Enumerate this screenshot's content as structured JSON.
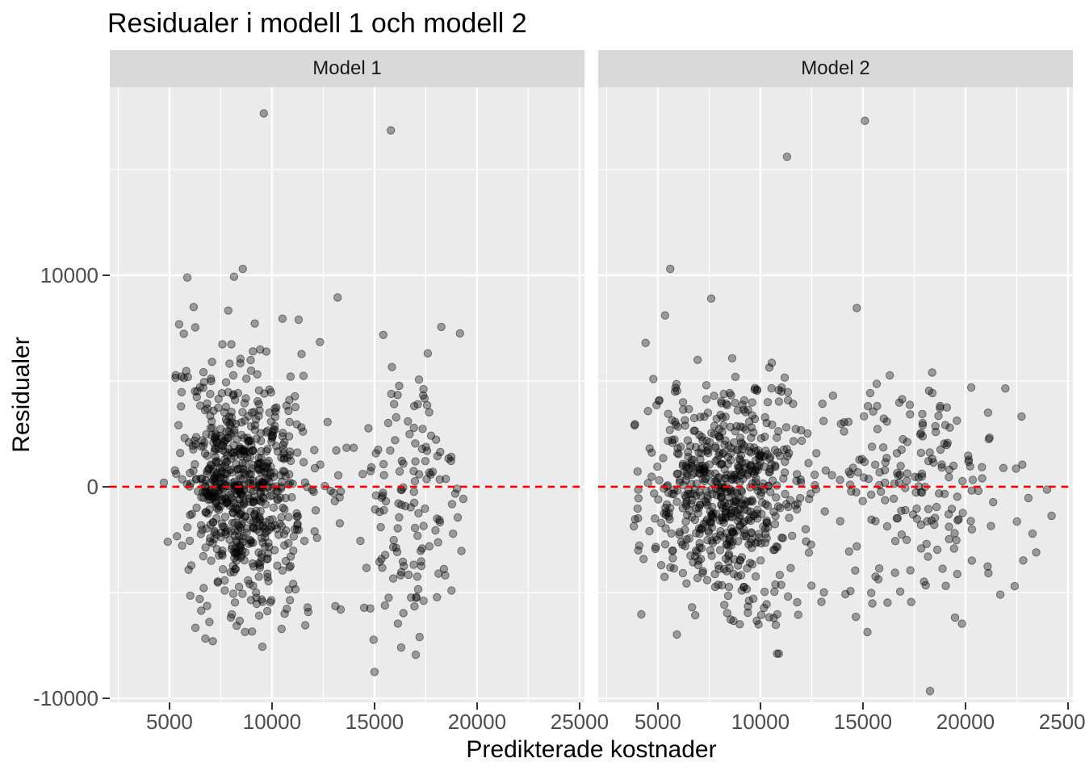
{
  "chart_data": {
    "type": "scatter",
    "title": "Residualer i modell 1 och modell 2",
    "xlabel": "Predikterade kostnader",
    "ylabel": "Residualer",
    "xlim": [
      2090,
      25240
    ],
    "ylim": [
      -10190,
      18890
    ],
    "x_major_ticks": [
      5000,
      10000,
      15000,
      20000,
      25000
    ],
    "x_minor_ticks": [
      2500,
      7500,
      12500,
      17500,
      22500
    ],
    "y_major_ticks": [
      -10000,
      0,
      10000
    ],
    "y_minor_ticks": [
      -5000,
      5000,
      15000
    ],
    "grid": true,
    "legend": "none",
    "reference_line": {
      "y": 0,
      "color": "#FF0000",
      "style": "dashed"
    },
    "point_style": {
      "color": "#000000",
      "fill_opacity": 0.35,
      "edge_opacity": 0.45,
      "radius": 4.7
    },
    "seed": 1337,
    "facets": [
      {
        "label": "Model 1",
        "clusters": [
          {
            "n": 480,
            "cx": 8700,
            "cy": -900,
            "sx": 1450,
            "sy": 1900,
            "xmin": 4600,
            "xmax": 12400,
            "ymin": -6700,
            "ymax": 4600
          },
          {
            "n": 200,
            "cx": 8300,
            "cy": 2100,
            "sx": 1700,
            "sy": 2300,
            "xmin": 4600,
            "xmax": 12400,
            "ymin": -800,
            "ymax": 8600
          },
          {
            "n": 28,
            "cx": 8800,
            "cy": -5700,
            "sx": 1500,
            "sy": 850,
            "xmin": 5200,
            "xmax": 12000,
            "ymin": -7700,
            "ymax": -4300
          },
          {
            "n": 135,
            "cx": 16600,
            "cy": -800,
            "sx": 1500,
            "sy": 3100,
            "xmin": 13700,
            "xmax": 19700,
            "ymin": -8500,
            "ymax": 7400
          },
          {
            "n": 12,
            "cx": 13000,
            "cy": -1200,
            "sx": 420,
            "sy": 2600,
            "xmin": 12400,
            "xmax": 13700,
            "ymin": -6200,
            "ymax": 3500
          }
        ],
        "outliers": [
          [
            9600,
            17650
          ],
          [
            15800,
            16850
          ],
          [
            13200,
            8950
          ],
          [
            5870,
            9890
          ],
          [
            8150,
            9930
          ],
          [
            8580,
            10300
          ],
          [
            7870,
            8330
          ],
          [
            10510,
            7950
          ],
          [
            6180,
            8500
          ],
          [
            5470,
            7680
          ],
          [
            15430,
            7180
          ],
          [
            18260,
            7560
          ],
          [
            19170,
            7250
          ],
          [
            15000,
            -8750
          ],
          [
            16300,
            -7600
          ],
          [
            17010,
            -7940
          ],
          [
            9530,
            -7560
          ],
          [
            11770,
            -5920
          ],
          [
            13350,
            -5800
          ],
          [
            11300,
            7900
          ]
        ]
      },
      {
        "label": "Model 2",
        "clusters": [
          {
            "n": 520,
            "cx": 8300,
            "cy": -800,
            "sx": 2000,
            "sy": 2000,
            "xmin": 3400,
            "xmax": 13800,
            "ymin": -7300,
            "ymax": 5600
          },
          {
            "n": 130,
            "cx": 8900,
            "cy": 2500,
            "sx": 2400,
            "sy": 1800,
            "xmin": 3700,
            "xmax": 14600,
            "ymin": -200,
            "ymax": 6700
          },
          {
            "n": 190,
            "cx": 17300,
            "cy": -200,
            "sx": 2900,
            "sy": 2600,
            "xmin": 13800,
            "xmax": 24600,
            "ymin": -6700,
            "ymax": 6200
          },
          {
            "n": 26,
            "cx": 10500,
            "cy": -5900,
            "sx": 2600,
            "sy": 950,
            "xmin": 5500,
            "xmax": 16500,
            "ymin": -7900,
            "ymax": -4400
          }
        ],
        "outliers": [
          [
            15100,
            17300
          ],
          [
            11300,
            15600
          ],
          [
            5600,
            10300
          ],
          [
            7600,
            8900
          ],
          [
            5350,
            8100
          ],
          [
            14700,
            8450
          ],
          [
            18270,
            -9650
          ],
          [
            21700,
            -5100
          ],
          [
            22400,
            -4700
          ],
          [
            24200,
            -1370
          ],
          [
            4400,
            6800
          ]
        ]
      }
    ]
  },
  "style": {
    "background": "#FFFFFF",
    "strip_bg": "#D9D9D9",
    "panel_bg": "#EBEBEB",
    "grid_color": "#FFFFFF",
    "tick_label_color": "#4D4D4D",
    "tick_mark_color": "#333333",
    "text_color": "#000000",
    "ref_line_color": "#FF0000"
  }
}
